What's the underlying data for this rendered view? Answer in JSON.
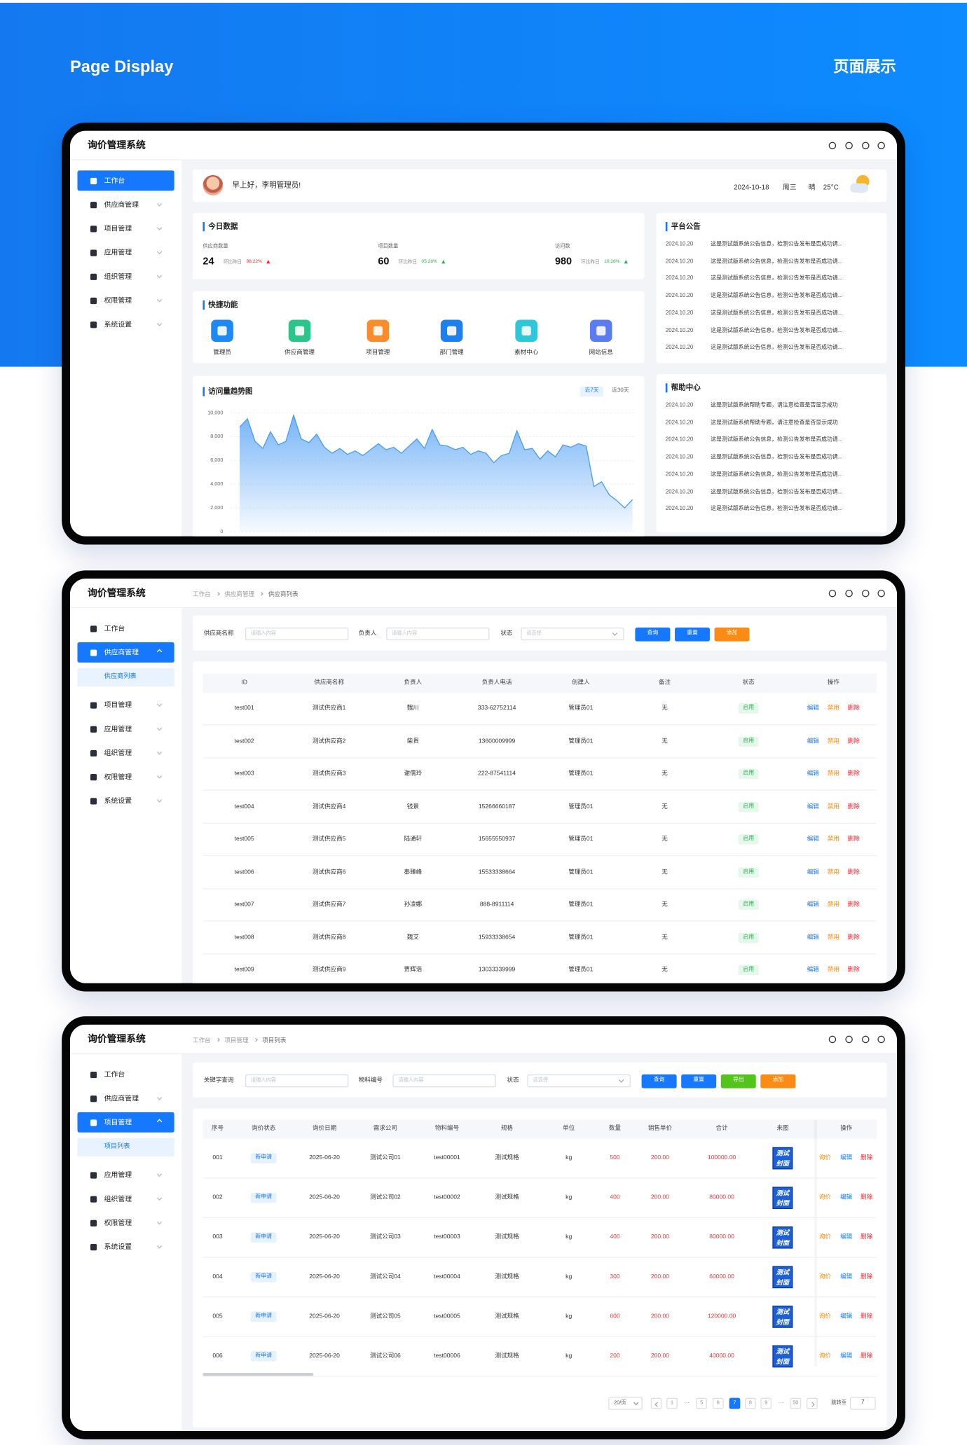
{
  "header": {
    "title": "Page Display",
    "title_zh": "页面展示"
  },
  "app_title": "询价管理系统",
  "menu": [
    "工作台",
    "供应商管理",
    "项目管理",
    "应用管理",
    "组织管理",
    "权限管理",
    "系统设置"
  ],
  "dashboard": {
    "greeting": "早上好，李明管理员!",
    "date": "2024-10-18",
    "weekday": "周三",
    "weather": "晴",
    "temperature": "25°C",
    "today": {
      "title": "今日数据",
      "stats": [
        {
          "label": "供应商数量",
          "value": "24",
          "compare": "环比昨日",
          "change": "08.22%"
        },
        {
          "label": "项目数量",
          "value": "60",
          "compare": "环比昨日",
          "change": "05.28%"
        },
        {
          "label": "访问数",
          "value": "980",
          "compare": "环比昨日",
          "change": "10.28%"
        }
      ]
    },
    "quick": {
      "title": "快捷功能",
      "items": [
        "管理员",
        "供应商管理",
        "项目管理",
        "部门管理",
        "素材中心",
        "网站信息"
      ]
    },
    "notices": {
      "title": "平台公告",
      "items": [
        {
          "date": "2024.10.20",
          "text": "这是测试版系统公告信息，检测公告发布是否成功请..."
        },
        {
          "date": "2024.10.20",
          "text": "这是测试版系统公告信息，检测公告发布是否成功请..."
        },
        {
          "date": "2024.10.20",
          "text": "这是测试版系统公告信息，检测公告发布是否成功请..."
        },
        {
          "date": "2024.10.20",
          "text": "这是测试版系统公告信息，检测公告发布是否成功请..."
        },
        {
          "date": "2024.10.20",
          "text": "这是测试版系统公告信息，检测公告发布是否成功请..."
        },
        {
          "date": "2024.10.20",
          "text": "这是测试版系统公告信息，检测公告发布是否成功请..."
        },
        {
          "date": "2024.10.20",
          "text": "这是测试版系统公告信息，检测公告发布是否成功请..."
        }
      ]
    },
    "help": {
      "title": "帮助中心",
      "items": [
        {
          "date": "2024.10.20",
          "text": "这是测试版系统帮助专题，请注意检查是否显示成功"
        },
        {
          "date": "2024.10.20",
          "text": "这是测试版系统帮助专题，请注意检查是否显示成功"
        },
        {
          "date": "2024.10.20",
          "text": "这是测试版系统公告信息，检测公告发布是否成功请..."
        },
        {
          "date": "2024.10.20",
          "text": "这是测试版系统公告信息，检测公告发布是否成功请..."
        },
        {
          "date": "2024.10.20",
          "text": "这是测试版系统公告信息，检测公告发布是否成功请..."
        },
        {
          "date": "2024.10.20",
          "text": "这是测试版系统公告信息，检测公告发布是否成功请..."
        },
        {
          "date": "2024.10.20",
          "text": "这是测试版系统公告信息，检测公告发布是否成功请..."
        }
      ]
    }
  },
  "chart_data": {
    "type": "area",
    "title": "访问量趋势图",
    "tabs": [
      "近7天",
      "近30天"
    ],
    "color": "#4a9cf5",
    "values": [
      8800,
      9500,
      7600,
      7000,
      8400,
      7300,
      7600,
      9800,
      7800,
      7500,
      8200,
      7100,
      6600,
      7000,
      6500,
      6800,
      6400,
      6900,
      7400,
      6900,
      7100,
      6600,
      7200,
      7800,
      7000,
      8600,
      7300,
      7200,
      6900,
      7100,
      6500,
      6800,
      6600,
      5800,
      6400,
      6600,
      8500,
      6900,
      7000,
      6100,
      6800,
      6300,
      7300,
      7100,
      7400,
      7200,
      3800,
      4200,
      3100,
      2600,
      2000,
      2700
    ],
    "ylim": [
      0,
      10000
    ],
    "yticks": [
      0,
      {
        "value": 2000,
        "label": "2,000"
      },
      {
        "value": 4000,
        "label": "4,000"
      },
      {
        "value": 6000,
        "label": "6,000"
      },
      {
        "value": 8000,
        "label": "8,000"
      },
      {
        "value": 10000,
        "label": "10,000"
      }
    ],
    "grid": true
  },
  "suppliers": {
    "breadcrumb": [
      "工作台",
      "供应商管理",
      "供应商列表"
    ],
    "filters": [
      {
        "label": "供应商名称",
        "placeholder": "请输入内容"
      },
      {
        "label": "负责人",
        "placeholder": "请输入内容"
      },
      {
        "label": "状态",
        "placeholder": "请选择"
      }
    ],
    "buttons": [
      "查询",
      "重置",
      "添加"
    ],
    "columns": [
      "ID",
      "供应商名称",
      "负责人",
      "负责人电话",
      "创建人",
      "备注",
      "状态",
      "操作"
    ],
    "rows": [
      [
        "test001",
        "测试供应商1",
        "魏川",
        "333-62752114",
        "管理员01",
        "无",
        "启用"
      ],
      [
        "test002",
        "测试供应商2",
        "柴贵",
        "13600009999",
        "管理员01",
        "无",
        "启用"
      ],
      [
        "test003",
        "测试供应商3",
        "谢儒玲",
        "222-87541114",
        "管理员01",
        "无",
        "启用"
      ],
      [
        "test004",
        "测试供应商4",
        "钱景",
        "15266660187",
        "管理员01",
        "无",
        "启用"
      ],
      [
        "test005",
        "测试供应商5",
        "陆通轩",
        "15655550937",
        "管理员01",
        "无",
        "启用"
      ],
      [
        "test006",
        "测试供应商6",
        "秦臻峰",
        "15533338664",
        "管理员01",
        "无",
        "启用"
      ],
      [
        "test007",
        "测试供应商7",
        "孙凌娜",
        "888-8911114",
        "管理员01",
        "无",
        "启用"
      ],
      [
        "test008",
        "测试供应商8",
        "魏艾",
        "15933338654",
        "管理员01",
        "无",
        "启用"
      ],
      [
        "test009",
        "测试供应商9",
        "贾辉浩",
        "13033339999",
        "管理员01",
        "无",
        "启用"
      ]
    ],
    "actions": [
      "编辑",
      "禁用",
      "删除"
    ]
  },
  "projects": {
    "breadcrumb": [
      "工作台",
      "项目管理",
      "项目列表"
    ],
    "filters": [
      {
        "label": "关键字查询",
        "placeholder": "请输入内容"
      },
      {
        "label": "物料编号",
        "placeholder": "请输入内容"
      },
      {
        "label": "状态",
        "placeholder": "请选择"
      }
    ],
    "buttons": [
      "查询",
      "重置",
      "导出",
      "添加"
    ],
    "columns": [
      "序号",
      "询价状态",
      "询价日期",
      "需求公司",
      "物料编号",
      "规格",
      "单位",
      "数量",
      "销售单价",
      "合计",
      "来图",
      "操作"
    ],
    "rows": [
      [
        "001",
        "新申请",
        "2025-06-20",
        "测试公司01",
        "test00001",
        "测试规格",
        "kg",
        "500",
        "200.00",
        "100000.00",
        "测试封面"
      ],
      [
        "002",
        "新申请",
        "2025-06-20",
        "测试公司02",
        "test00002",
        "测试规格",
        "kg",
        "400",
        "200.00",
        "80000.00",
        "测试封面"
      ],
      [
        "003",
        "新申请",
        "2025-06-20",
        "测试公司03",
        "test00003",
        "测试规格",
        "kg",
        "400",
        "200.00",
        "80000.00",
        "测试封面"
      ],
      [
        "004",
        "新申请",
        "2025-06-20",
        "测试公司04",
        "test00004",
        "测试规格",
        "kg",
        "300",
        "200.00",
        "60000.00",
        "测试封面"
      ],
      [
        "005",
        "新申请",
        "2025-06-20",
        "测试公司05",
        "test00005",
        "测试规格",
        "kg",
        "600",
        "200.00",
        "120000.00",
        "测试封面"
      ],
      [
        "006",
        "新申请",
        "2025-06-20",
        "测试公司06",
        "test00006",
        "测试规格",
        "kg",
        "200",
        "200.00",
        "40000.00",
        "测试封面"
      ]
    ],
    "actions": [
      "询价",
      "编辑",
      "删除"
    ],
    "pagination": {
      "page_size": "20/页",
      "pages": [
        "1",
        "···",
        "5",
        "6",
        "7",
        "8",
        "9",
        "···",
        "50"
      ],
      "jump_label": "跳转至",
      "jump_value": "7"
    }
  }
}
